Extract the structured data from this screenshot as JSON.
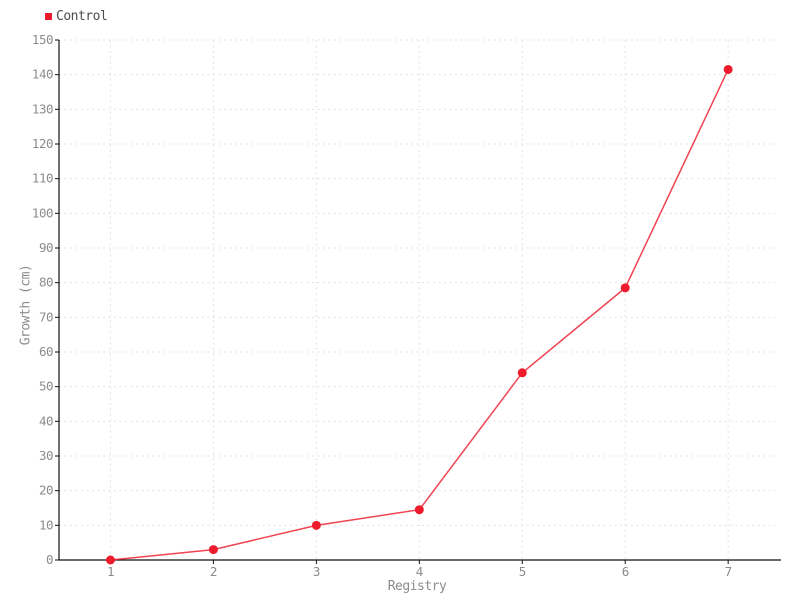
{
  "page": {
    "background": "#ffffff"
  },
  "legend": {
    "position": "top-left",
    "items": [
      {
        "label": "Control",
        "color": "#ed1b2c"
      }
    ]
  },
  "chart_data": {
    "type": "line",
    "title": "",
    "xlabel": "Registry",
    "ylabel": "Growth (cm)",
    "x": [
      1,
      2,
      3,
      4,
      5,
      6,
      7
    ],
    "series": [
      {
        "name": "Control",
        "color": "#ed1b2c",
        "line_opacity": 0.82,
        "marker": "circle",
        "marker_radius": 4.5,
        "values": [
          0,
          3,
          10,
          14.5,
          54,
          78.5,
          141.5
        ]
      }
    ],
    "xlim": [
      0.5,
      7.455
    ],
    "ylim": [
      0,
      150
    ],
    "x_ticks": [
      1,
      2,
      3,
      4,
      5,
      6,
      7
    ],
    "y_ticks": [
      0,
      10,
      20,
      30,
      40,
      50,
      60,
      70,
      80,
      90,
      100,
      110,
      120,
      130,
      140,
      150
    ],
    "grid": "dashed",
    "grid_color": "#e2e2e2",
    "axis_color": "#111111",
    "tick_label_color": "#8c8c8c",
    "legend_position": "top-left"
  }
}
